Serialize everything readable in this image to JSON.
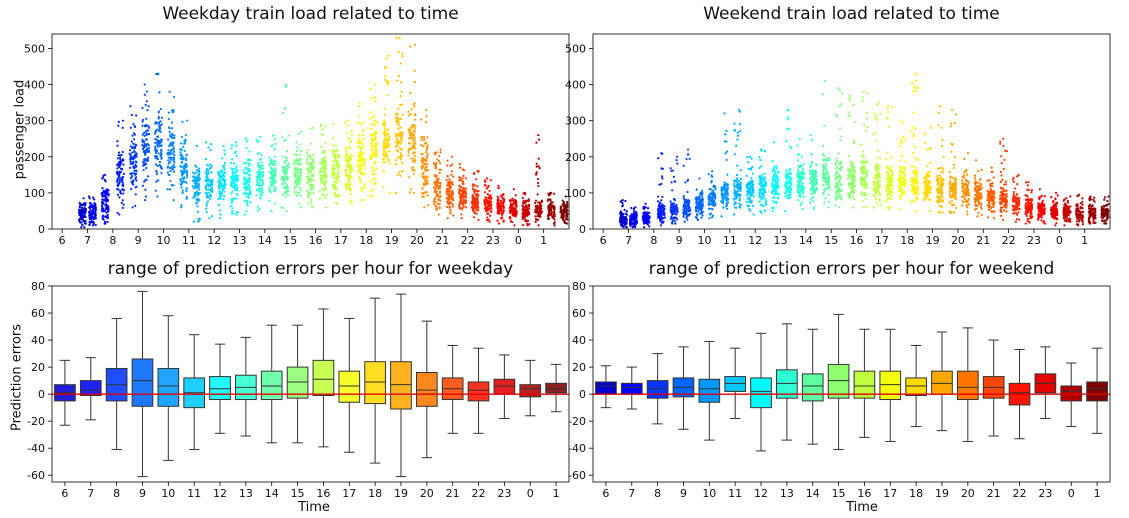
{
  "chart_data": [
    {
      "type": "scatter",
      "title": "Weekday train load related to time",
      "ylabel": "passenger load",
      "xlabel": "",
      "ylim": [
        0,
        540
      ],
      "yticks": [
        0,
        100,
        200,
        300,
        400,
        500
      ],
      "x_tick_labels": [
        "6",
        "7",
        "8",
        "9",
        "10",
        "11",
        "12",
        "13",
        "14",
        "15",
        "16",
        "17",
        "18",
        "19",
        "20",
        "21",
        "22",
        "23",
        "0",
        "1"
      ],
      "hour_columns": [
        {
          "label": "6.8",
          "low": 5,
          "q1": 25,
          "median": 40,
          "q3": 60,
          "high": 85
        },
        {
          "label": "7.2",
          "low": 10,
          "q1": 30,
          "median": 45,
          "q3": 65,
          "high": 90
        },
        {
          "label": "7.7",
          "low": 15,
          "q1": 45,
          "median": 70,
          "q3": 100,
          "high": 150
        },
        {
          "label": "8.3",
          "low": 40,
          "q1": 110,
          "median": 150,
          "q3": 200,
          "high": 300
        },
        {
          "label": "8.8",
          "low": 60,
          "q1": 140,
          "median": 185,
          "q3": 240,
          "high": 340
        },
        {
          "label": "9.3",
          "low": 80,
          "q1": 170,
          "median": 220,
          "q3": 275,
          "high": 400
        },
        {
          "label": "9.8",
          "low": 90,
          "q1": 180,
          "median": 235,
          "q3": 290,
          "high": 430
        },
        {
          "label": "10.3",
          "low": 80,
          "q1": 170,
          "median": 215,
          "q3": 260,
          "high": 380
        },
        {
          "label": "10.8",
          "low": 60,
          "q1": 130,
          "median": 170,
          "q3": 215,
          "high": 300
        },
        {
          "label": "11.3",
          "low": 20,
          "q1": 90,
          "median": 120,
          "q3": 150,
          "high": 230
        },
        {
          "label": "11.8",
          "low": 30,
          "q1": 90,
          "median": 125,
          "q3": 155,
          "high": 240
        },
        {
          "label": "12.3",
          "low": 30,
          "q1": 95,
          "median": 130,
          "q3": 160,
          "high": 230
        },
        {
          "label": "12.8",
          "low": 40,
          "q1": 100,
          "median": 135,
          "q3": 165,
          "high": 240
        },
        {
          "label": "13.3",
          "low": 40,
          "q1": 100,
          "median": 135,
          "q3": 170,
          "high": 250
        },
        {
          "label": "13.8",
          "low": 50,
          "q1": 110,
          "median": 140,
          "q3": 175,
          "high": 255
        },
        {
          "label": "14.3",
          "low": 50,
          "q1": 110,
          "median": 145,
          "q3": 180,
          "high": 260
        },
        {
          "label": "14.8",
          "low": 50,
          "q1": 110,
          "median": 145,
          "q3": 180,
          "high": 400
        },
        {
          "label": "15.3",
          "low": 60,
          "q1": 115,
          "median": 150,
          "q3": 185,
          "high": 270
        },
        {
          "label": "15.8",
          "low": 60,
          "q1": 115,
          "median": 150,
          "q3": 190,
          "high": 280
        },
        {
          "label": "16.3",
          "low": 60,
          "q1": 120,
          "median": 155,
          "q3": 195,
          "high": 290
        },
        {
          "label": "16.8",
          "low": 70,
          "q1": 125,
          "median": 165,
          "q3": 205,
          "high": 290
        },
        {
          "label": "17.3",
          "low": 70,
          "q1": 130,
          "median": 170,
          "q3": 215,
          "high": 300
        },
        {
          "label": "17.8",
          "low": 80,
          "q1": 150,
          "median": 195,
          "q3": 245,
          "high": 350
        },
        {
          "label": "18.3",
          "low": 90,
          "q1": 180,
          "median": 230,
          "q3": 285,
          "high": 400
        },
        {
          "label": "18.8",
          "low": 100,
          "q1": 190,
          "median": 240,
          "q3": 295,
          "high": 480
        },
        {
          "label": "19.3",
          "low": 100,
          "q1": 200,
          "median": 255,
          "q3": 310,
          "high": 530
        },
        {
          "label": "19.8",
          "low": 100,
          "q1": 190,
          "median": 245,
          "q3": 300,
          "high": 510
        },
        {
          "label": "20.3",
          "low": 60,
          "q1": 140,
          "median": 180,
          "q3": 230,
          "high": 330
        },
        {
          "label": "20.8",
          "low": 40,
          "q1": 90,
          "median": 120,
          "q3": 150,
          "high": 220
        },
        {
          "label": "21.3",
          "low": 30,
          "q1": 75,
          "median": 100,
          "q3": 130,
          "high": 200
        },
        {
          "label": "21.8",
          "low": 30,
          "q1": 65,
          "median": 90,
          "q3": 115,
          "high": 180
        },
        {
          "label": "22.3",
          "low": 25,
          "q1": 60,
          "median": 80,
          "q3": 105,
          "high": 160
        },
        {
          "label": "22.8",
          "low": 20,
          "q1": 55,
          "median": 75,
          "q3": 95,
          "high": 140
        },
        {
          "label": "23.3",
          "low": 15,
          "q1": 45,
          "median": 65,
          "q3": 85,
          "high": 120
        },
        {
          "label": "23.8",
          "low": 10,
          "q1": 40,
          "median": 55,
          "q3": 75,
          "high": 110
        },
        {
          "label": "0.3",
          "low": 10,
          "q1": 35,
          "median": 50,
          "q3": 70,
          "high": 100
        },
        {
          "label": "0.8",
          "low": 10,
          "q1": 35,
          "median": 50,
          "q3": 70,
          "high": 260
        },
        {
          "label": "1.3",
          "low": 10,
          "q1": 35,
          "median": 50,
          "q3": 65,
          "high": 100
        },
        {
          "label": "1.8",
          "low": 15,
          "q1": 35,
          "median": 50,
          "q3": 65,
          "high": 90
        }
      ]
    },
    {
      "type": "scatter",
      "title": "Weekend train load related to time",
      "ylabel": "",
      "xlabel": "",
      "ylim": [
        0,
        540
      ],
      "yticks": [
        0,
        100,
        200,
        300,
        400,
        500
      ],
      "x_tick_labels": [
        "6",
        "7",
        "8",
        "9",
        "10",
        "11",
        "12",
        "13",
        "14",
        "15",
        "16",
        "17",
        "18",
        "19",
        "20",
        "21",
        "22",
        "23",
        "0",
        "1"
      ],
      "hour_columns": [
        {
          "label": "6.8",
          "low": 5,
          "q1": 15,
          "median": 25,
          "q3": 40,
          "high": 80
        },
        {
          "label": "7.2",
          "low": 5,
          "q1": 15,
          "median": 25,
          "q3": 35,
          "high": 60
        },
        {
          "label": "7.7",
          "low": 5,
          "q1": 20,
          "median": 30,
          "q3": 45,
          "high": 70
        },
        {
          "label": "8.3",
          "low": 10,
          "q1": 30,
          "median": 45,
          "q3": 60,
          "high": 210
        },
        {
          "label": "8.8",
          "low": 15,
          "q1": 35,
          "median": 50,
          "q3": 70,
          "high": 200
        },
        {
          "label": "9.3",
          "low": 20,
          "q1": 45,
          "median": 60,
          "q3": 80,
          "high": 220
        },
        {
          "label": "9.8",
          "low": 25,
          "q1": 55,
          "median": 70,
          "q3": 90,
          "high": 140
        },
        {
          "label": "10.3",
          "low": 30,
          "q1": 65,
          "median": 85,
          "q3": 105,
          "high": 160
        },
        {
          "label": "10.8",
          "low": 35,
          "q1": 75,
          "median": 95,
          "q3": 120,
          "high": 320
        },
        {
          "label": "11.3",
          "low": 40,
          "q1": 80,
          "median": 105,
          "q3": 130,
          "high": 330
        },
        {
          "label": "11.8",
          "low": 40,
          "q1": 85,
          "median": 110,
          "q3": 135,
          "high": 200
        },
        {
          "label": "12.3",
          "low": 45,
          "q1": 90,
          "median": 115,
          "q3": 145,
          "high": 220
        },
        {
          "label": "12.8",
          "low": 50,
          "q1": 95,
          "median": 120,
          "q3": 150,
          "high": 240
        },
        {
          "label": "13.3",
          "low": 50,
          "q1": 100,
          "median": 125,
          "q3": 155,
          "high": 330
        },
        {
          "label": "13.8",
          "low": 55,
          "q1": 100,
          "median": 130,
          "q3": 160,
          "high": 250
        },
        {
          "label": "14.3",
          "low": 55,
          "q1": 105,
          "median": 135,
          "q3": 165,
          "high": 260
        },
        {
          "label": "14.8",
          "low": 60,
          "q1": 110,
          "median": 140,
          "q3": 170,
          "high": 410
        },
        {
          "label": "15.3",
          "low": 60,
          "q1": 110,
          "median": 140,
          "q3": 175,
          "high": 390
        },
        {
          "label": "15.8",
          "low": 60,
          "q1": 110,
          "median": 140,
          "q3": 175,
          "high": 370
        },
        {
          "label": "16.3",
          "low": 60,
          "q1": 110,
          "median": 140,
          "q3": 175,
          "high": 380
        },
        {
          "label": "16.8",
          "low": 60,
          "q1": 105,
          "median": 135,
          "q3": 170,
          "high": 350
        },
        {
          "label": "17.3",
          "low": 55,
          "q1": 100,
          "median": 130,
          "q3": 165,
          "high": 340
        },
        {
          "label": "17.8",
          "low": 55,
          "q1": 100,
          "median": 130,
          "q3": 160,
          "high": 300
        },
        {
          "label": "18.3",
          "low": 50,
          "q1": 95,
          "median": 125,
          "q3": 155,
          "high": 430
        },
        {
          "label": "18.8",
          "low": 50,
          "q1": 95,
          "median": 120,
          "q3": 150,
          "high": 280
        },
        {
          "label": "19.3",
          "low": 45,
          "q1": 90,
          "median": 115,
          "q3": 145,
          "high": 340
        },
        {
          "label": "19.8",
          "low": 45,
          "q1": 85,
          "median": 110,
          "q3": 140,
          "high": 330
        },
        {
          "label": "20.3",
          "low": 40,
          "q1": 80,
          "median": 105,
          "q3": 130,
          "high": 210
        },
        {
          "label": "20.8",
          "low": 35,
          "q1": 75,
          "median": 95,
          "q3": 120,
          "high": 190
        },
        {
          "label": "21.3",
          "low": 30,
          "q1": 65,
          "median": 85,
          "q3": 110,
          "high": 170
        },
        {
          "label": "21.8",
          "low": 25,
          "q1": 60,
          "median": 80,
          "q3": 100,
          "high": 250
        },
        {
          "label": "22.3",
          "low": 20,
          "q1": 55,
          "median": 70,
          "q3": 90,
          "high": 150
        },
        {
          "label": "22.8",
          "low": 15,
          "q1": 45,
          "median": 60,
          "q3": 80,
          "high": 130
        },
        {
          "label": "23.3",
          "low": 15,
          "q1": 40,
          "median": 55,
          "q3": 70,
          "high": 110
        },
        {
          "label": "23.8",
          "low": 10,
          "q1": 35,
          "median": 50,
          "q3": 65,
          "high": 100
        },
        {
          "label": "0.3",
          "low": 10,
          "q1": 35,
          "median": 45,
          "q3": 60,
          "high": 90
        },
        {
          "label": "0.8",
          "low": 10,
          "q1": 35,
          "median": 45,
          "q3": 60,
          "high": 95
        },
        {
          "label": "1.3",
          "low": 15,
          "q1": 35,
          "median": 45,
          "q3": 60,
          "high": 90
        },
        {
          "label": "1.8",
          "low": 15,
          "q1": 35,
          "median": 45,
          "q3": 60,
          "high": 90
        }
      ]
    },
    {
      "type": "box",
      "title": "range of prediction errors per hour for weekday",
      "ylabel": "Prediction errors",
      "xlabel": "Time",
      "ylim": [
        -65,
        80
      ],
      "yticks": [
        -60,
        -40,
        -20,
        0,
        20,
        40,
        60,
        80
      ],
      "reference_line": 0,
      "categories": [
        "6",
        "7",
        "8",
        "9",
        "10",
        "11",
        "12",
        "13",
        "14",
        "15",
        "16",
        "17",
        "18",
        "19",
        "20",
        "21",
        "22",
        "23",
        "0",
        "1"
      ],
      "boxes": [
        {
          "min": -23,
          "q1": -5,
          "median": 1,
          "q3": 7,
          "max": 25
        },
        {
          "min": -19,
          "q1": -1,
          "median": 3,
          "q3": 10,
          "max": 27
        },
        {
          "min": -41,
          "q1": -5,
          "median": 7,
          "q3": 19,
          "max": 56
        },
        {
          "min": -61,
          "q1": -9,
          "median": 10,
          "q3": 26,
          "max": 76
        },
        {
          "min": -49,
          "q1": -9,
          "median": 6,
          "q3": 19,
          "max": 58
        },
        {
          "min": -41,
          "q1": -10,
          "median": 1,
          "q3": 12,
          "max": 44
        },
        {
          "min": -29,
          "q1": -4,
          "median": 4,
          "q3": 13,
          "max": 37
        },
        {
          "min": -31,
          "q1": -4,
          "median": 5,
          "q3": 14,
          "max": 42
        },
        {
          "min": -36,
          "q1": -4,
          "median": 6,
          "q3": 17,
          "max": 51
        },
        {
          "min": -36,
          "q1": -3,
          "median": 9,
          "q3": 20,
          "max": 51
        },
        {
          "min": -39,
          "q1": -1,
          "median": 11,
          "q3": 25,
          "max": 63
        },
        {
          "min": -43,
          "q1": -6,
          "median": 6,
          "q3": 17,
          "max": 56
        },
        {
          "min": -51,
          "q1": -7,
          "median": 9,
          "q3": 24,
          "max": 71
        },
        {
          "min": -61,
          "q1": -11,
          "median": 7,
          "q3": 24,
          "max": 74
        },
        {
          "min": -47,
          "q1": -9,
          "median": 3,
          "q3": 16,
          "max": 54
        },
        {
          "min": -29,
          "q1": -4,
          "median": 4,
          "q3": 12,
          "max": 36
        },
        {
          "min": -29,
          "q1": -5,
          "median": 3,
          "q3": 9,
          "max": 34
        },
        {
          "min": -18,
          "q1": 0,
          "median": 6,
          "q3": 11,
          "max": 29
        },
        {
          "min": -16,
          "q1": -2,
          "median": 4,
          "q3": 7,
          "max": 25
        },
        {
          "min": -13,
          "q1": 1,
          "median": 4,
          "q3": 8,
          "max": 22
        }
      ]
    },
    {
      "type": "box",
      "title": "range of prediction errors per hour for weekend",
      "ylabel": "",
      "xlabel": "Time",
      "ylim": [
        -65,
        80
      ],
      "yticks": [
        -60,
        -40,
        -20,
        0,
        20,
        40,
        60,
        80
      ],
      "reference_line": 0,
      "categories": [
        "6",
        "7",
        "8",
        "9",
        "10",
        "11",
        "12",
        "13",
        "14",
        "15",
        "16",
        "17",
        "18",
        "19",
        "20",
        "21",
        "22",
        "23",
        "0",
        "1"
      ],
      "boxes": [
        {
          "min": -10,
          "q1": 0,
          "median": 6,
          "q3": 9,
          "max": 21
        },
        {
          "min": -11,
          "q1": 0,
          "median": 5,
          "q3": 8,
          "max": 20
        },
        {
          "min": -22,
          "q1": -3,
          "median": 4,
          "q3": 10,
          "max": 30
        },
        {
          "min": -26,
          "q1": -2,
          "median": 5,
          "q3": 12,
          "max": 35
        },
        {
          "min": -34,
          "q1": -6,
          "median": 4,
          "q3": 11,
          "max": 39
        },
        {
          "min": -18,
          "q1": 2,
          "median": 8,
          "q3": 13,
          "max": 34
        },
        {
          "min": -42,
          "q1": -10,
          "median": 2,
          "q3": 12,
          "max": 45
        },
        {
          "min": -34,
          "q1": -3,
          "median": 8,
          "q3": 18,
          "max": 52
        },
        {
          "min": -37,
          "q1": -5,
          "median": 6,
          "q3": 15,
          "max": 48
        },
        {
          "min": -41,
          "q1": -3,
          "median": 10,
          "q3": 22,
          "max": 59
        },
        {
          "min": -32,
          "q1": -3,
          "median": 6,
          "q3": 17,
          "max": 48
        },
        {
          "min": -35,
          "q1": -4,
          "median": 7,
          "q3": 17,
          "max": 48
        },
        {
          "min": -24,
          "q1": -1,
          "median": 6,
          "q3": 12,
          "max": 36
        },
        {
          "min": -27,
          "q1": 0,
          "median": 8,
          "q3": 17,
          "max": 46
        },
        {
          "min": -35,
          "q1": -4,
          "median": 5,
          "q3": 17,
          "max": 49
        },
        {
          "min": -31,
          "q1": -3,
          "median": 5,
          "q3": 13,
          "max": 40
        },
        {
          "min": -33,
          "q1": -8,
          "median": 1,
          "q3": 8,
          "max": 33
        },
        {
          "min": -18,
          "q1": 1,
          "median": 8,
          "q3": 15,
          "max": 35
        },
        {
          "min": -24,
          "q1": -5,
          "median": 2,
          "q3": 6,
          "max": 23
        },
        {
          "min": -29,
          "q1": -5,
          "median": 4,
          "q3": 9,
          "max": 34
        }
      ]
    }
  ]
}
